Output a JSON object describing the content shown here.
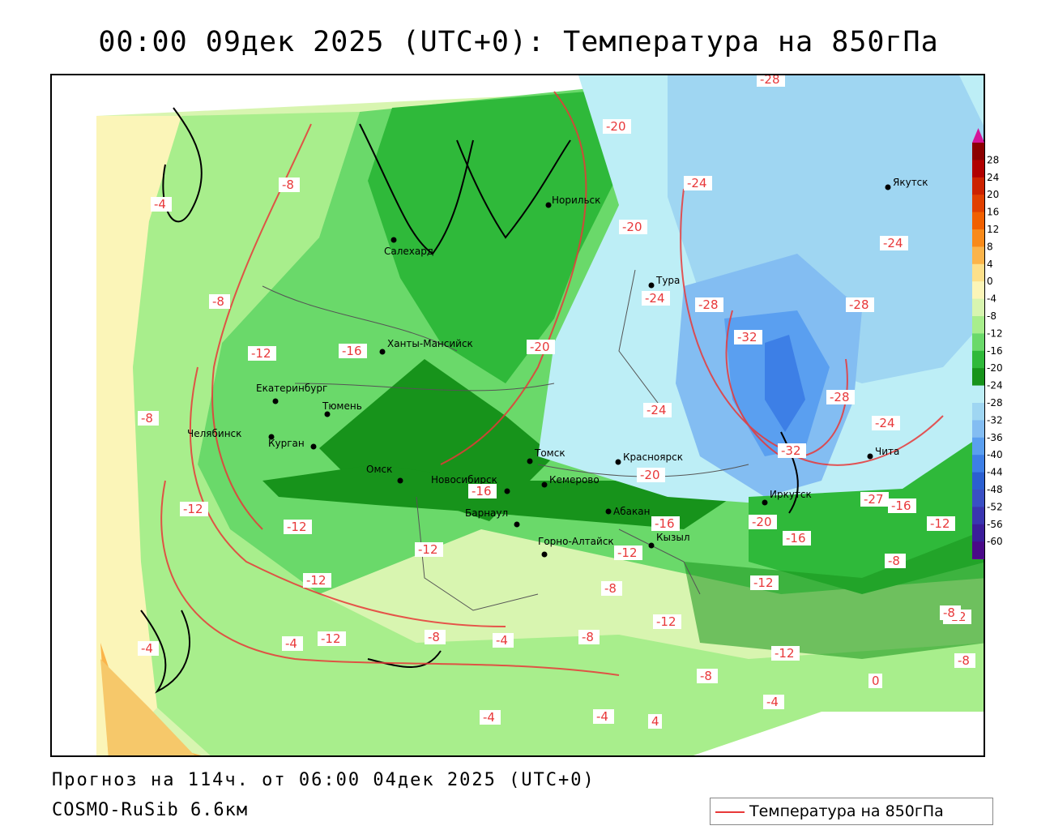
{
  "title": "00:00 09дек 2025 (UTC+0): Температура на 850гПа",
  "forecast_text": "Прогноз на 114ч. от 06:00 04дек 2025 (UTC+0)",
  "model_text": "COSMO-RuSib 6.6км",
  "legend": {
    "label": "Температура на 850гПа",
    "line_color": "#e83838"
  },
  "colorbar": {
    "ticks": [
      "28",
      "24",
      "20",
      "16",
      "12",
      "8",
      "4",
      "0",
      "-4",
      "-8",
      "-12",
      "-16",
      "-20",
      "-24",
      "-28",
      "-32",
      "-36",
      "-40",
      "-44",
      "-48",
      "-52",
      "-56",
      "-60"
    ],
    "colors": [
      "#8b0000",
      "#b00000",
      "#cc2200",
      "#e04000",
      "#f06000",
      "#f88a1a",
      "#fbb44a",
      "#fde08a",
      "#fbf5b8",
      "#d8f5b0",
      "#a8ee8c",
      "#6ad96a",
      "#2fb93a",
      "#17931b",
      "#bdeef6",
      "#9fd6f2",
      "#83bdf2",
      "#5a9ff0",
      "#3d7fe6",
      "#2b5fd0",
      "#3a4fc4",
      "#3a35b0",
      "#3b1d9a",
      "#4a0a88"
    ],
    "top_arrow_color": "#d4149a",
    "bottom_arrow_color": "#8a00a8"
  },
  "cities": [
    {
      "name": "Салехард"
    },
    {
      "name": "Норильск"
    },
    {
      "name": "Якутск"
    },
    {
      "name": "Тура"
    },
    {
      "name": "Ханты-Мансийск"
    },
    {
      "name": "Екатеринбург"
    },
    {
      "name": "Тюмень"
    },
    {
      "name": "Челябинск"
    },
    {
      "name": "Курган"
    },
    {
      "name": "Омск"
    },
    {
      "name": "Томск"
    },
    {
      "name": "Красноярск"
    },
    {
      "name": "Новосибирск"
    },
    {
      "name": "Кемерово"
    },
    {
      "name": "Барнаул"
    },
    {
      "name": "Абакан"
    },
    {
      "name": "Горно-Алтайск"
    },
    {
      "name": "Кызыл"
    },
    {
      "name": "Иркутск"
    },
    {
      "name": "Чита"
    }
  ],
  "contour_labels": [
    "-28",
    "-20",
    "-24",
    "-8",
    "-4",
    "-20",
    "-24",
    "-8",
    "-24",
    "-28",
    "-28",
    "-12",
    "-16",
    "-20",
    "-32",
    "-28",
    "-24",
    "-8",
    "-24",
    "-20",
    "-32",
    "-12",
    "-16",
    "-12",
    "-16",
    "-27",
    "-16",
    "-12",
    "-12",
    "-20",
    "-16",
    "-12",
    "-12",
    "-12",
    "-8",
    "-12",
    "-12",
    "-8",
    "-4",
    "-12",
    "-8",
    "-4",
    "-8",
    "-12",
    "-8",
    "-8",
    "-8",
    "-4",
    "0",
    "-4",
    "-4",
    "-4",
    "4"
  ]
}
